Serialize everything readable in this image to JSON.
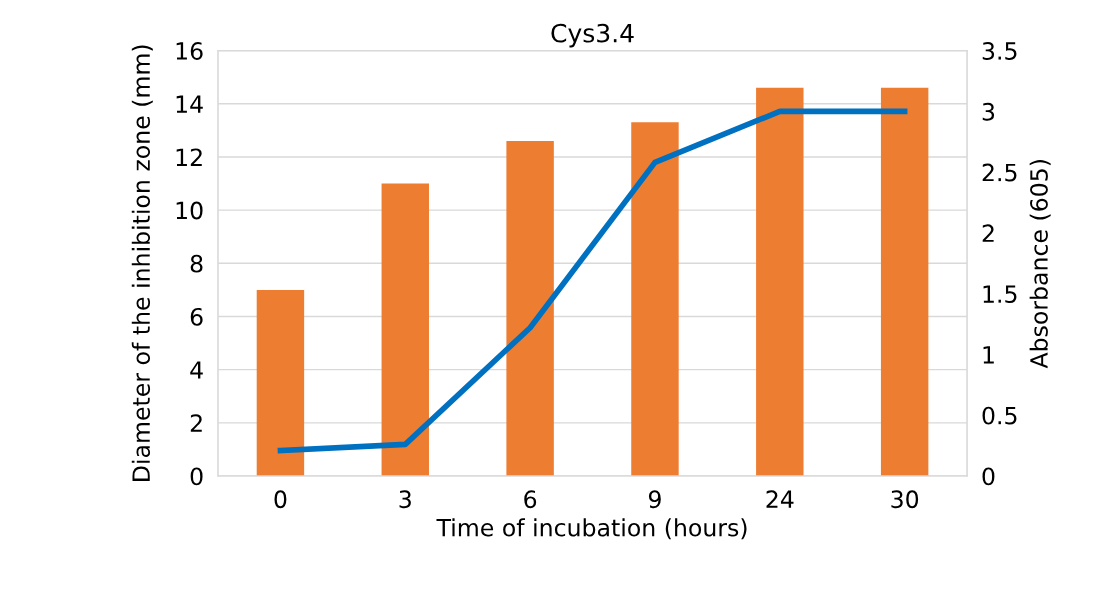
{
  "chart_data": {
    "type": "bar",
    "title": "Cys3.4",
    "xlabel": "Time of incubation (hours)",
    "ylabel": "Diameter of the inhibition zone (mm)",
    "y2label": "Absorbance (605)",
    "categories": [
      "0",
      "3",
      "6",
      "9",
      "24",
      "30"
    ],
    "series": [
      {
        "color": "#ed7d31",
        "values": [
          7,
          11,
          12.6,
          13.3,
          14.6,
          14.6
        ]
      },
      {
        "type": "line",
        "axis": "y2",
        "color": "#0070c0",
        "values": [
          0.21,
          0.26,
          1.22,
          2.58,
          3.0,
          3.0
        ]
      }
    ],
    "ylim": [
      0,
      16
    ],
    "yticks": [
      0,
      2,
      4,
      6,
      8,
      10,
      12,
      14,
      16
    ],
    "y2lim": [
      0,
      3.5
    ],
    "y2ticks": [
      0,
      0.5,
      1,
      1.5,
      2,
      2.5,
      3,
      3.5
    ],
    "grid": "y",
    "legend": false,
    "marker": "none",
    "line_style": "solid"
  }
}
